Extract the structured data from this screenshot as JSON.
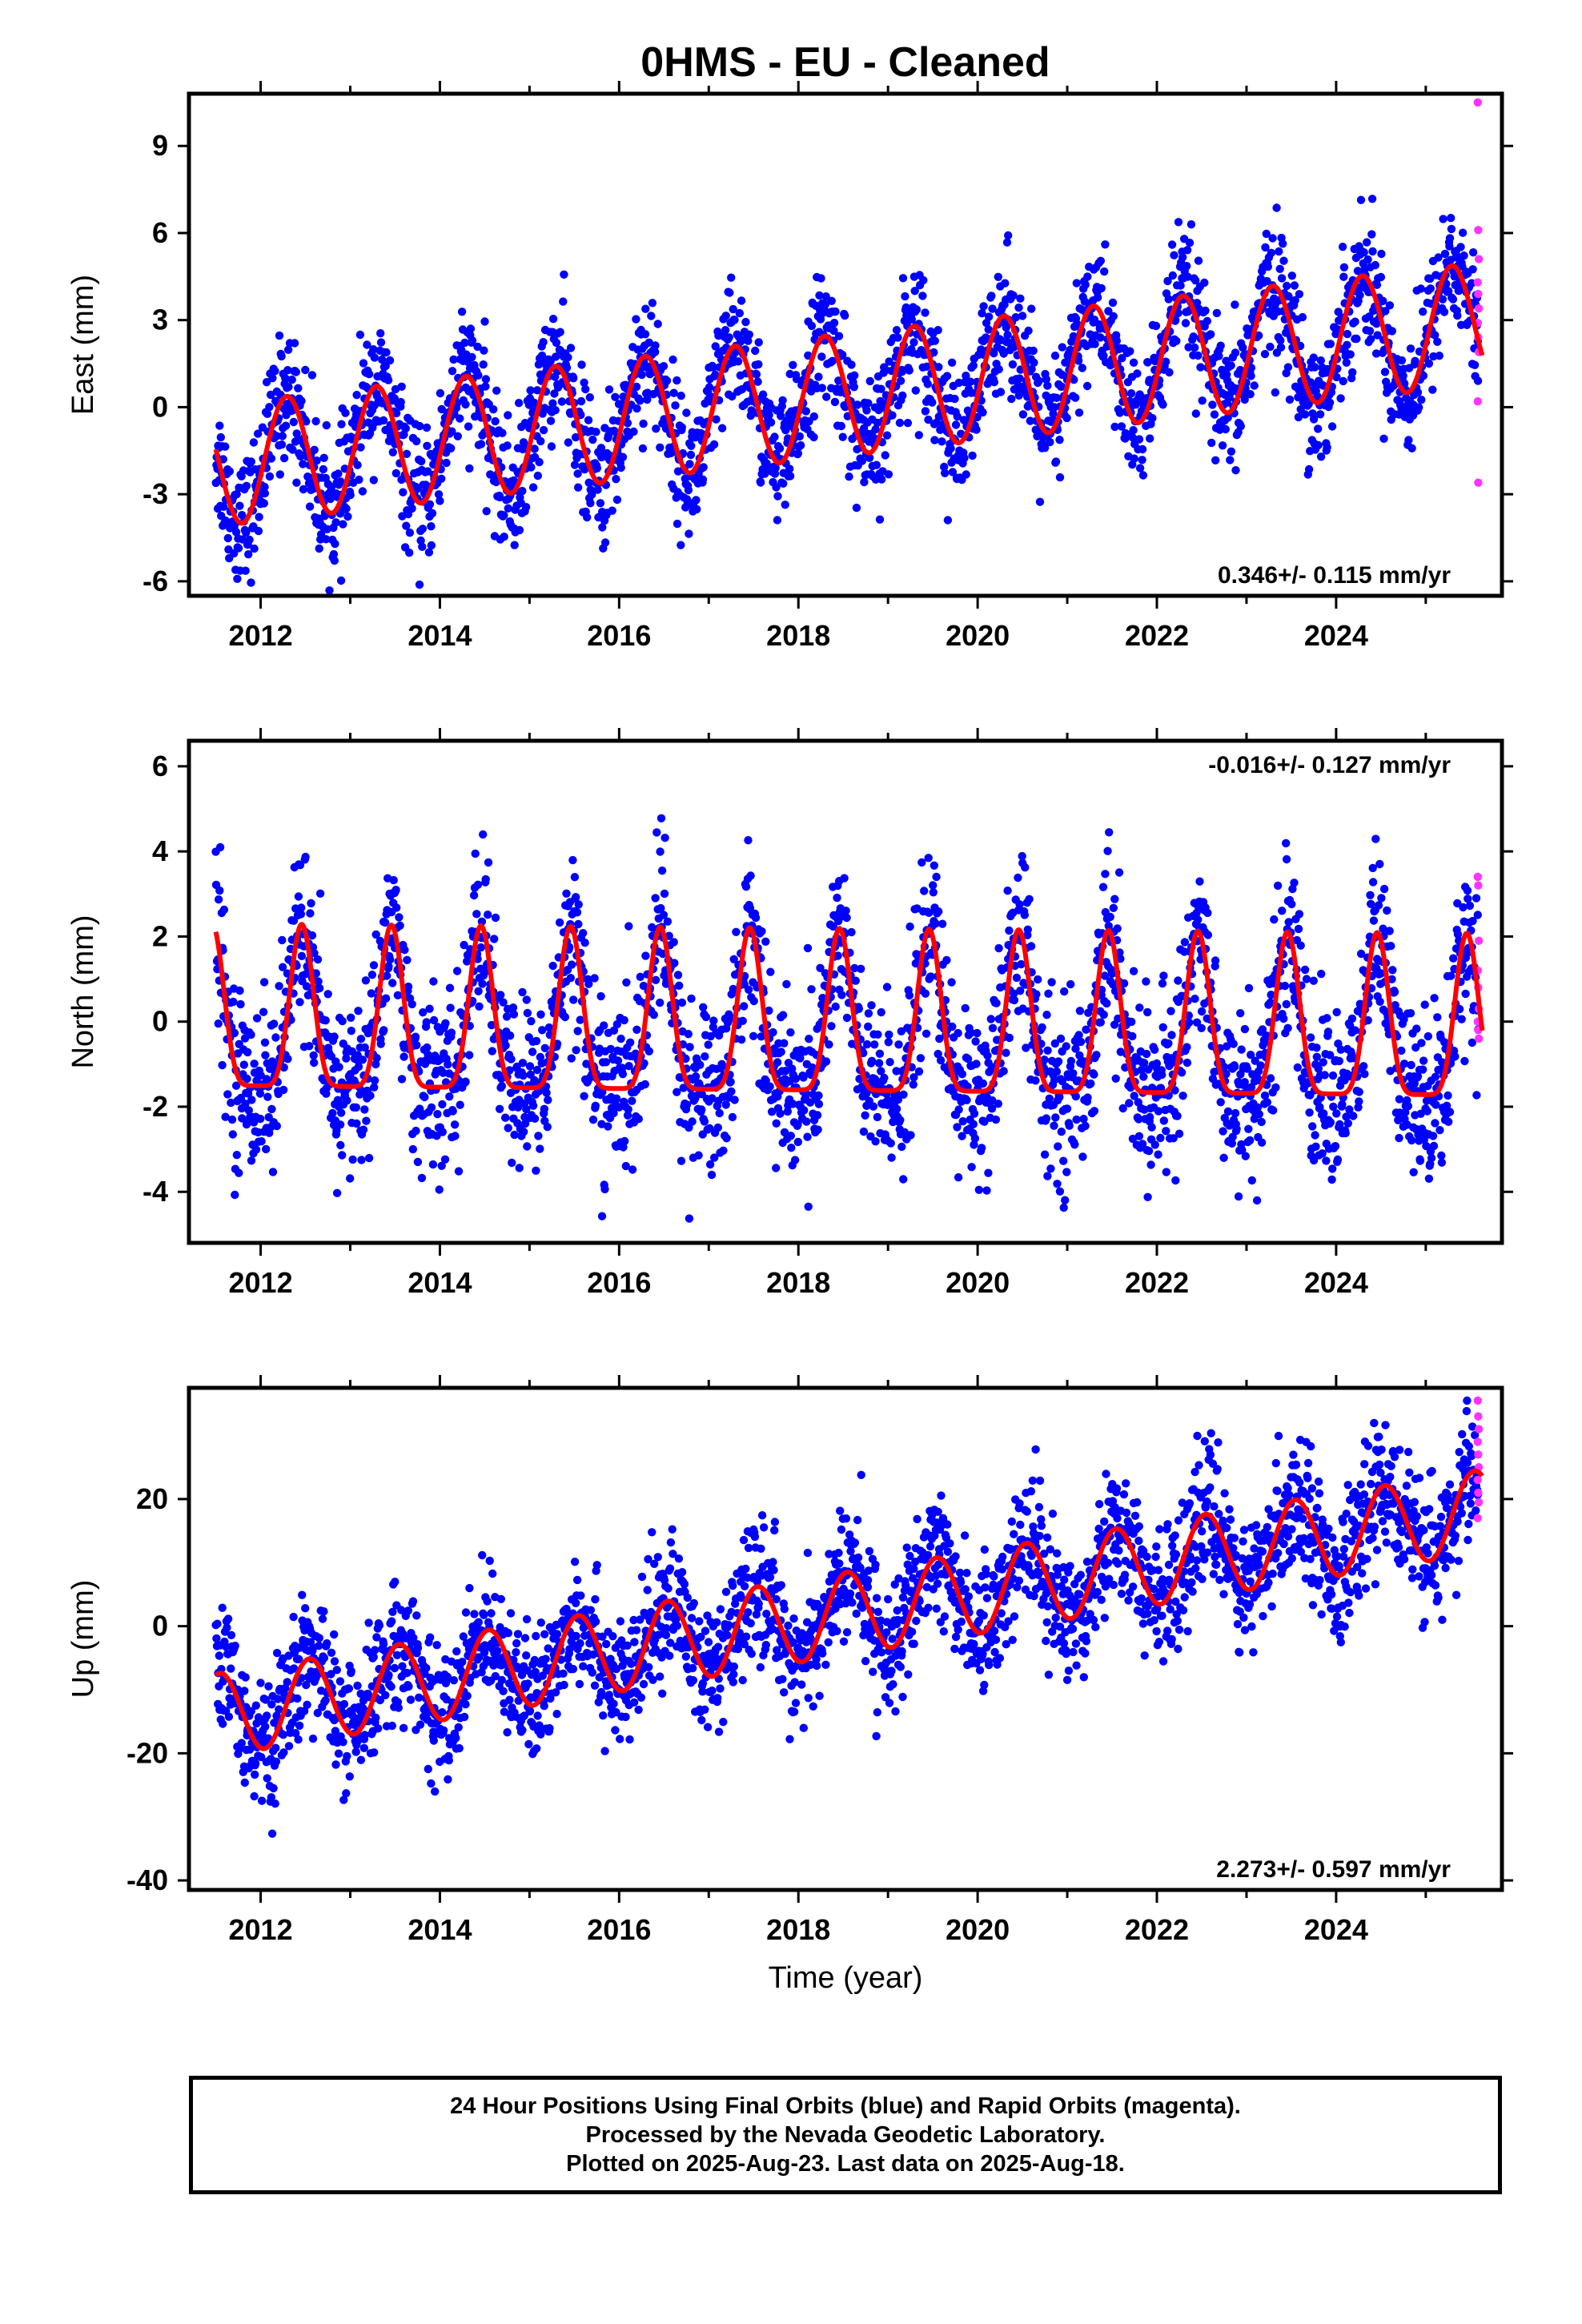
{
  "title": "0HMS  - EU - Cleaned",
  "colors": {
    "final": "#0000ff",
    "rapid": "#ff33ff",
    "model": "#ff0000",
    "frame": "#000000"
  },
  "chart_data": [
    {
      "type": "scatter",
      "component": "east",
      "ylabel": "East (mm)",
      "ylim": [
        -6.5,
        10.8
      ],
      "yticks": [
        -6,
        -3,
        0,
        3,
        6,
        9
      ],
      "xlim": [
        2011.2,
        2025.85
      ],
      "xticks": [
        2012,
        2014,
        2016,
        2018,
        2020,
        2022,
        2024
      ],
      "rate_text": "0.346+/- 0.115 mm/yr",
      "rate_position": "bottom-right",
      "model": {
        "offset": -2.0,
        "trend": 0.346,
        "amplitude": 2.1,
        "phase_peak_month": 4,
        "start": 2011.5,
        "end": 2025.63
      },
      "scatter_spread": 1.1,
      "rapid_points": [
        10.5,
        6.1,
        5.1,
        4.3,
        3.9,
        3.4,
        2.9,
        2.4,
        1.9,
        0.2,
        -2.6
      ]
    },
    {
      "type": "scatter",
      "component": "north",
      "ylabel": "North (mm)",
      "ylim": [
        -5.2,
        6.6
      ],
      "yticks": [
        -4,
        -2,
        0,
        2,
        4,
        6
      ],
      "xlim": [
        2011.2,
        2025.85
      ],
      "xticks": [
        2012,
        2014,
        2016,
        2018,
        2020,
        2022,
        2024
      ],
      "rate_text": "-0.016+/- 0.127 mm/yr",
      "rate_position": "top-right",
      "model": {
        "offset": 0.4,
        "trend": -0.016,
        "amplitude": 1.9,
        "phase_peak_month": 6,
        "start": 2011.5,
        "end": 2025.63
      },
      "scatter_spread": 1.0,
      "rapid_points": [
        3.4,
        3.2,
        1.9,
        1.2,
        0.8,
        0.3,
        0.0,
        -0.2,
        -0.4
      ]
    },
    {
      "type": "scatter",
      "component": "up",
      "ylabel": "Up (mm)",
      "ylim": [
        -41.5,
        37.5
      ],
      "yticks": [
        -40,
        -20,
        0,
        20
      ],
      "xlim": [
        2011.2,
        2025.85
      ],
      "xticks": [
        2012,
        2014,
        2016,
        2018,
        2020,
        2022,
        2024
      ],
      "xlabel": "Time (year)",
      "rate_text": "2.273+/- 0.597 mm/yr",
      "rate_position": "bottom-right",
      "model": {
        "offset": -14.0,
        "trend": 2.273,
        "amplitude": 6.5,
        "phase_peak_month": 7,
        "start": 2011.5,
        "end": 2025.63
      },
      "scatter_spread": 5.0,
      "rapid_points": [
        35.5,
        33.0,
        31.0,
        29.0,
        27.0,
        25.0,
        23.0,
        21.0,
        19.5,
        17.0
      ]
    }
  ],
  "footer": {
    "line1": "24 Hour Positions Using Final Orbits (blue) and Rapid Orbits (magenta).",
    "line2": "Processed by the Nevada Geodetic Laboratory.",
    "line3": "Plotted on 2025-Aug-23. Last data on 2025-Aug-18."
  }
}
